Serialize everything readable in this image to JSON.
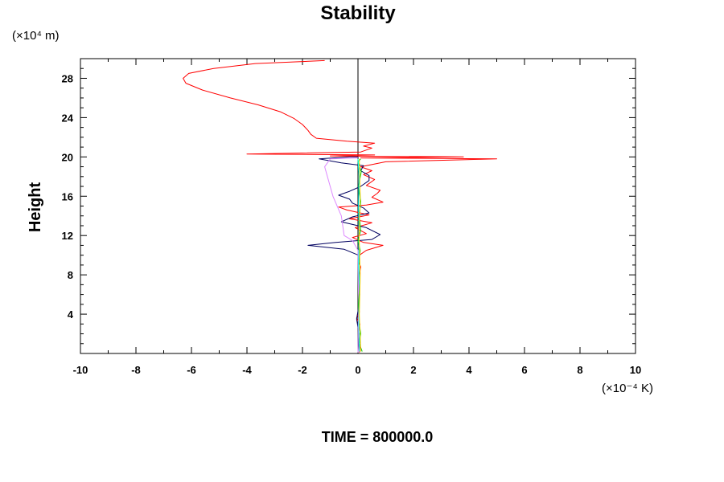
{
  "chart_data": {
    "type": "line",
    "title": "Stability",
    "ylabel": "Height",
    "y_unit": "(×10⁴ m)",
    "x_unit": "(×10⁻⁴ K)",
    "footer": "TIME = 800000.0",
    "xlim": [
      -10,
      10
    ],
    "ylim": [
      0,
      30
    ],
    "x_ticks": [
      -10,
      -8,
      -6,
      -4,
      -2,
      0,
      2,
      4,
      6,
      8,
      10
    ],
    "y_ticks": [
      4,
      8,
      12,
      16,
      20,
      24,
      28
    ],
    "grid": false,
    "series": [
      {
        "color": "#ff0000",
        "points": [
          [
            0.05,
            0.1
          ],
          [
            0.08,
            1.0
          ],
          [
            0.02,
            2.0
          ],
          [
            0.07,
            3.0
          ],
          [
            -0.05,
            3.6
          ],
          [
            0.05,
            4.2
          ],
          [
            0.03,
            5.0
          ],
          [
            0.06,
            6.0
          ],
          [
            0.03,
            7.0
          ],
          [
            0.05,
            8.0
          ],
          [
            0.1,
            8.8
          ],
          [
            0.02,
            9.4
          ],
          [
            0.05,
            10.0
          ],
          [
            0.3,
            10.5
          ],
          [
            0.9,
            11.0
          ],
          [
            0.2,
            11.3
          ],
          [
            -0.2,
            11.8
          ],
          [
            0.3,
            12.2
          ],
          [
            -0.1,
            12.8
          ],
          [
            0.5,
            13.3
          ],
          [
            -0.3,
            13.7
          ],
          [
            0.4,
            14.1
          ],
          [
            -0.4,
            14.6
          ],
          [
            -0.7,
            14.9
          ],
          [
            0.3,
            15.1
          ],
          [
            0.9,
            15.4
          ],
          [
            0.5,
            15.9
          ],
          [
            0.7,
            16.3
          ],
          [
            0.8,
            16.6
          ],
          [
            0.3,
            17.1
          ],
          [
            0.6,
            17.7
          ],
          [
            0.2,
            18.2
          ],
          [
            0.5,
            18.6
          ],
          [
            0.1,
            19.0
          ],
          [
            1.0,
            19.5
          ],
          [
            5.0,
            19.8
          ],
          [
            0.1,
            19.9
          ],
          [
            3.8,
            20.0
          ],
          [
            -1.0,
            20.1
          ],
          [
            0.6,
            20.2
          ],
          [
            -4.0,
            20.3
          ],
          [
            0.1,
            20.5
          ],
          [
            0.5,
            20.9
          ],
          [
            0.2,
            21.1
          ],
          [
            0.6,
            21.4
          ],
          [
            -0.4,
            21.6
          ],
          [
            -1.5,
            21.9
          ],
          [
            -1.7,
            22.3
          ],
          [
            -1.8,
            22.7
          ],
          [
            -2.0,
            23.3
          ],
          [
            -2.3,
            23.9
          ],
          [
            -2.8,
            24.6
          ],
          [
            -3.6,
            25.3
          ],
          [
            -4.6,
            26.0
          ],
          [
            -5.6,
            26.8
          ],
          [
            -6.2,
            27.5
          ],
          [
            -6.3,
            28.0
          ],
          [
            -6.1,
            28.5
          ],
          [
            -5.2,
            29.0
          ],
          [
            -3.7,
            29.5
          ],
          [
            -1.2,
            29.8
          ]
        ]
      },
      {
        "color": "#000060",
        "points": [
          [
            0.0,
            0.1
          ],
          [
            0.04,
            2.0
          ],
          [
            -0.05,
            3.5
          ],
          [
            0.04,
            5.0
          ],
          [
            0.02,
            7.0
          ],
          [
            0.03,
            9.0
          ],
          [
            0.02,
            10.0
          ],
          [
            -0.5,
            10.6
          ],
          [
            -1.8,
            11.0
          ],
          [
            -0.8,
            11.3
          ],
          [
            0.5,
            11.6
          ],
          [
            0.8,
            12.1
          ],
          [
            0.3,
            12.8
          ],
          [
            -0.6,
            13.4
          ],
          [
            -0.2,
            13.9
          ],
          [
            0.4,
            14.3
          ],
          [
            0.2,
            14.8
          ],
          [
            -0.2,
            15.3
          ],
          [
            -0.3,
            15.7
          ],
          [
            -0.7,
            16.1
          ],
          [
            -0.3,
            16.5
          ],
          [
            0.1,
            17.0
          ],
          [
            0.4,
            17.6
          ],
          [
            0.4,
            18.1
          ],
          [
            0.1,
            18.6
          ],
          [
            0.2,
            19.1
          ],
          [
            -0.6,
            19.4
          ],
          [
            -1.4,
            19.8
          ],
          [
            -0.3,
            20.0
          ],
          [
            0.0,
            20.0
          ]
        ]
      },
      {
        "color": "#dd88ff",
        "points": [
          [
            0.0,
            0.1
          ],
          [
            0.02,
            5.0
          ],
          [
            0.0,
            10.5
          ],
          [
            -0.2,
            11.5
          ],
          [
            -0.5,
            12.0
          ],
          [
            -0.6,
            14.0
          ],
          [
            -0.9,
            16.0
          ],
          [
            -1.2,
            19.0
          ],
          [
            -1.0,
            19.8
          ],
          [
            0.0,
            19.9
          ]
        ]
      },
      {
        "color": "#00cc00",
        "points": [
          [
            0.15,
            0.2
          ],
          [
            0.05,
            1.0
          ],
          [
            0.1,
            2.0
          ],
          [
            0.05,
            3.0
          ],
          [
            0.02,
            5.0
          ],
          [
            0.06,
            7.0
          ],
          [
            0.03,
            9.0
          ],
          [
            0.08,
            10.5
          ],
          [
            0.0,
            11.5
          ],
          [
            0.1,
            12.5
          ],
          [
            0.05,
            14.0
          ],
          [
            0.1,
            15.5
          ],
          [
            0.02,
            17.0
          ],
          [
            0.12,
            18.5
          ],
          [
            0.0,
            19.5
          ],
          [
            0.1,
            19.8
          ]
        ]
      },
      {
        "color": "#00ffff",
        "points": [
          [
            0.05,
            0.2
          ],
          [
            0.03,
            3.0
          ],
          [
            0.06,
            6.0
          ],
          [
            0.02,
            9.0
          ],
          [
            0.04,
            12.0
          ],
          [
            0.02,
            15.0
          ],
          [
            0.04,
            18.0
          ],
          [
            0.0,
            19.8
          ]
        ]
      },
      {
        "color": "#ffd000",
        "points": [
          [
            0.1,
            0.2
          ],
          [
            0.05,
            4.0
          ],
          [
            0.08,
            8.0
          ],
          [
            0.04,
            12.0
          ],
          [
            0.08,
            16.0
          ],
          [
            0.05,
            19.8
          ]
        ]
      }
    ]
  }
}
